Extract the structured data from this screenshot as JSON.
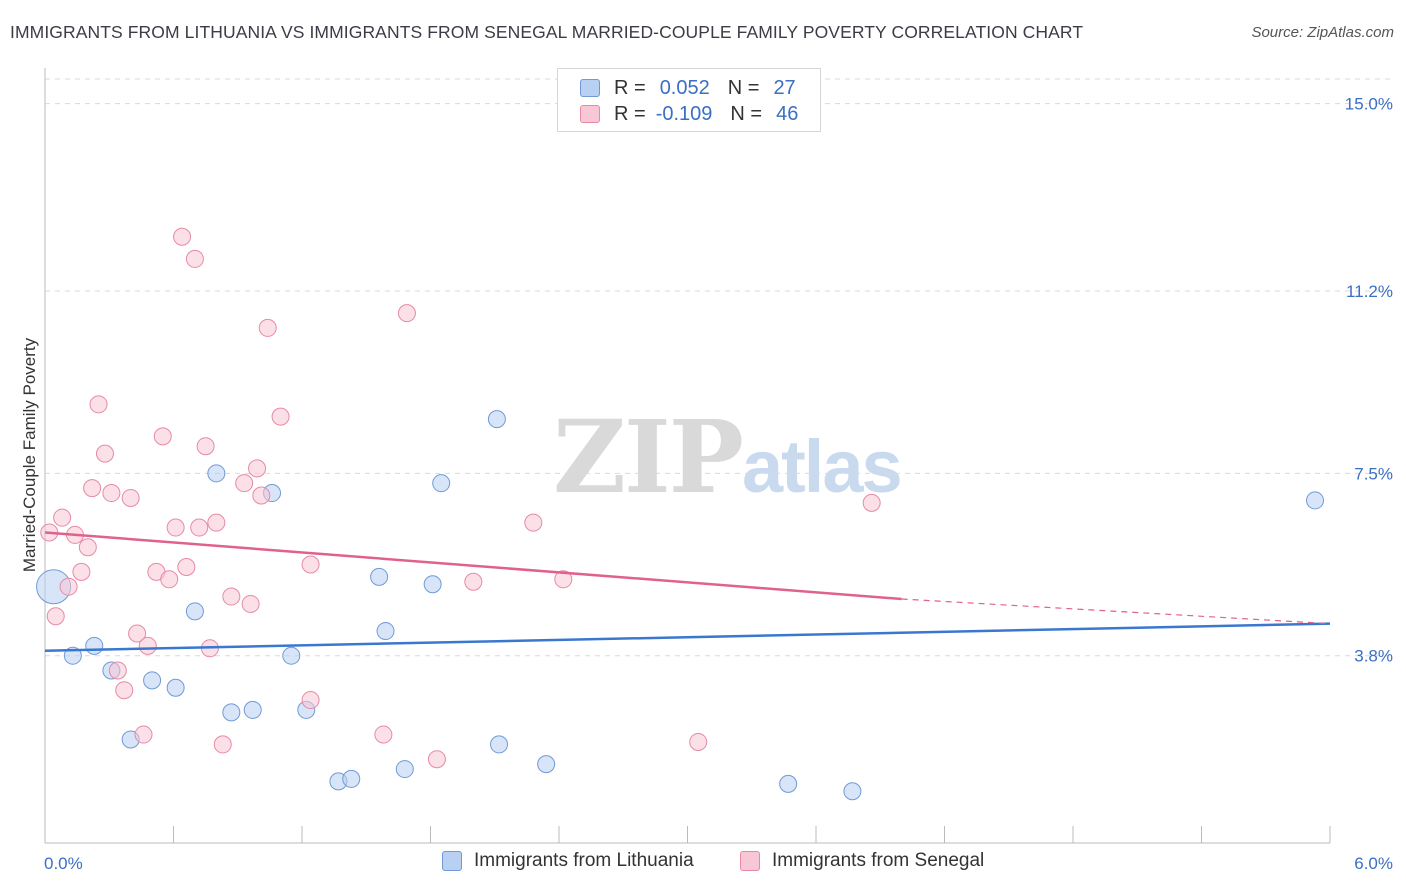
{
  "title": "IMMIGRANTS FROM LITHUANIA VS IMMIGRANTS FROM SENEGAL MARRIED-COUPLE FAMILY POVERTY CORRELATION CHART",
  "source": "Source: ZipAtlas.com",
  "watermark": {
    "zip": "ZIP",
    "atlas": "atlas"
  },
  "colors": {
    "blue_fill": "#b8d0f2",
    "blue_stroke": "#6f9ad6",
    "blue_line": "#3a78cf",
    "pink_fill": "#f7c7d6",
    "pink_stroke": "#e68aa8",
    "pink_line": "#e0628c",
    "tick_label": "#3a6fc4",
    "grid": "#d9d9d9"
  },
  "legend": {
    "rows": [
      {
        "r_label": "R =",
        "r_value": "0.052",
        "n_label": "N =",
        "n_value": "27"
      },
      {
        "r_label": "R =",
        "r_value": "-0.109",
        "n_label": "N =",
        "n_value": "46"
      }
    ]
  },
  "bottom_legend": [
    "Immigrants from Lithuania",
    "Immigrants from Senegal"
  ],
  "chart_data": {
    "type": "scatter",
    "title": "IMMIGRANTS FROM LITHUANIA VS IMMIGRANTS FROM SENEGAL MARRIED-COUPLE FAMILY POVERTY CORRELATION CHART",
    "xlabel": "",
    "ylabel": "Married-Couple Family Poverty",
    "xlim": [
      0.0,
      6.0
    ],
    "ylim": [
      0.0,
      15.5
    ],
    "x_tick_labels": [
      "0.0%",
      "6.0%"
    ],
    "y_ticks": [
      3.8,
      7.5,
      11.2,
      15.0
    ],
    "y_tick_labels": [
      "3.8%",
      "7.5%",
      "11.2%",
      "15.0%"
    ],
    "grid": true,
    "series": [
      {
        "name": "Immigrants from Lithuania",
        "color": "blue",
        "R": 0.052,
        "N": 27,
        "trend": {
          "x": [
            0.0,
            6.0
          ],
          "y": [
            3.9,
            4.45
          ]
        },
        "points": [
          {
            "x": 0.04,
            "y": 5.2,
            "big": true
          },
          {
            "x": 0.13,
            "y": 3.8
          },
          {
            "x": 0.23,
            "y": 4.0
          },
          {
            "x": 0.31,
            "y": 3.5
          },
          {
            "x": 0.4,
            "y": 2.1
          },
          {
            "x": 0.5,
            "y": 3.3
          },
          {
            "x": 0.61,
            "y": 3.15
          },
          {
            "x": 0.7,
            "y": 4.7
          },
          {
            "x": 0.8,
            "y": 7.5
          },
          {
            "x": 0.87,
            "y": 2.65
          },
          {
            "x": 0.97,
            "y": 2.7
          },
          {
            "x": 1.06,
            "y": 7.1
          },
          {
            "x": 1.15,
            "y": 3.8
          },
          {
            "x": 1.22,
            "y": 2.7
          },
          {
            "x": 1.37,
            "y": 1.25
          },
          {
            "x": 1.43,
            "y": 1.3
          },
          {
            "x": 1.56,
            "y": 5.4
          },
          {
            "x": 1.59,
            "y": 4.3
          },
          {
            "x": 1.68,
            "y": 1.5
          },
          {
            "x": 1.81,
            "y": 5.25
          },
          {
            "x": 1.85,
            "y": 7.3
          },
          {
            "x": 2.11,
            "y": 8.6
          },
          {
            "x": 2.12,
            "y": 2.0
          },
          {
            "x": 2.34,
            "y": 1.6
          },
          {
            "x": 3.47,
            "y": 1.2
          },
          {
            "x": 3.77,
            "y": 1.05
          },
          {
            "x": 5.93,
            "y": 6.95
          }
        ]
      },
      {
        "name": "Immigrants from Senegal",
        "color": "pink",
        "R": -0.109,
        "N": 46,
        "trend": {
          "x": [
            0.0,
            4.0
          ],
          "y": [
            6.3,
            4.95
          ]
        },
        "trend_dashed": {
          "x": [
            4.0,
            6.0
          ],
          "y": [
            4.95,
            4.45
          ]
        },
        "points": [
          {
            "x": 0.02,
            "y": 6.3
          },
          {
            "x": 0.05,
            "y": 4.6
          },
          {
            "x": 0.08,
            "y": 6.6
          },
          {
            "x": 0.11,
            "y": 5.2
          },
          {
            "x": 0.14,
            "y": 6.25
          },
          {
            "x": 0.17,
            "y": 5.5
          },
          {
            "x": 0.2,
            "y": 6.0
          },
          {
            "x": 0.22,
            "y": 7.2
          },
          {
            "x": 0.25,
            "y": 8.9
          },
          {
            "x": 0.28,
            "y": 7.9
          },
          {
            "x": 0.31,
            "y": 7.1
          },
          {
            "x": 0.34,
            "y": 3.5
          },
          {
            "x": 0.37,
            "y": 3.1
          },
          {
            "x": 0.4,
            "y": 7.0
          },
          {
            "x": 0.43,
            "y": 4.25
          },
          {
            "x": 0.46,
            "y": 2.2
          },
          {
            "x": 0.48,
            "y": 4.0
          },
          {
            "x": 0.52,
            "y": 5.5
          },
          {
            "x": 0.55,
            "y": 8.25
          },
          {
            "x": 0.58,
            "y": 5.35
          },
          {
            "x": 0.61,
            "y": 6.4
          },
          {
            "x": 0.64,
            "y": 12.3
          },
          {
            "x": 0.66,
            "y": 5.6
          },
          {
            "x": 0.7,
            "y": 11.85
          },
          {
            "x": 0.72,
            "y": 6.4
          },
          {
            "x": 0.75,
            "y": 8.05
          },
          {
            "x": 0.77,
            "y": 3.95
          },
          {
            "x": 0.8,
            "y": 6.5
          },
          {
            "x": 0.83,
            "y": 2.0
          },
          {
            "x": 0.87,
            "y": 5.0
          },
          {
            "x": 0.93,
            "y": 7.3
          },
          {
            "x": 0.96,
            "y": 4.85
          },
          {
            "x": 0.99,
            "y": 7.6
          },
          {
            "x": 1.01,
            "y": 7.05
          },
          {
            "x": 1.04,
            "y": 10.45
          },
          {
            "x": 1.1,
            "y": 8.65
          },
          {
            "x": 1.24,
            "y": 5.65
          },
          {
            "x": 1.24,
            "y": 2.9
          },
          {
            "x": 1.58,
            "y": 2.2
          },
          {
            "x": 1.69,
            "y": 10.75
          },
          {
            "x": 1.83,
            "y": 1.7
          },
          {
            "x": 2.0,
            "y": 5.3
          },
          {
            "x": 2.28,
            "y": 6.5
          },
          {
            "x": 2.42,
            "y": 5.35
          },
          {
            "x": 3.05,
            "y": 2.05
          },
          {
            "x": 3.86,
            "y": 6.9
          }
        ]
      }
    ]
  }
}
